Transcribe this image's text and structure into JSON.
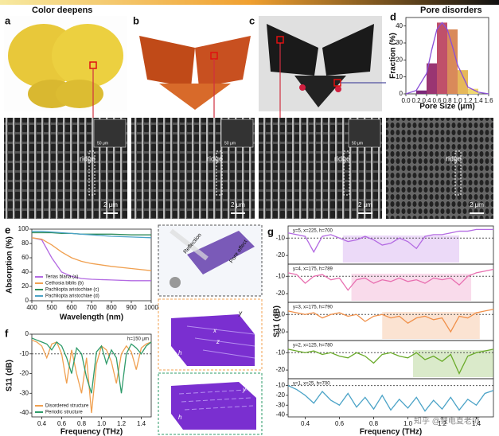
{
  "figure": {
    "banner_left": "Color deepens",
    "banner_right": "Pore disorders",
    "panels": [
      "a",
      "b",
      "c"
    ],
    "sem": [
      {
        "ridge": "ridge",
        "scale": "2 μm",
        "inset_scale": "50 μm"
      },
      {
        "ridge": "ridge",
        "scale": "2 μm",
        "inset_scale": "50 μm"
      },
      {
        "ridge": "ridge",
        "scale": "2 μm",
        "inset_scale": "50 μm"
      },
      {
        "ridge": "ridge",
        "scale": "2 μm"
      }
    ],
    "diagram": {
      "reflection": "Reflection",
      "pore": "Pore effect",
      "dims1": [
        "x",
        "y",
        "z",
        "h"
      ],
      "dims2": [
        "y",
        "h"
      ]
    },
    "watermark": "知乎 @锂电夏老师"
  },
  "chart_data": [
    {
      "type": "histogram",
      "label": "d",
      "bins": [
        0.2,
        0.4,
        0.6,
        0.8,
        1.0,
        1.2,
        1.4
      ],
      "values": [
        2,
        18,
        42,
        38,
        14,
        3
      ],
      "colors": [
        "#7b2a7a",
        "#9a3572",
        "#c0506a",
        "#d98a5a",
        "#e6b85a",
        "#f0d870"
      ],
      "fit": {
        "color": "#8a4fd8",
        "x": [
          0.0,
          0.2,
          0.4,
          0.5,
          0.6,
          0.7,
          0.8,
          0.9,
          1.0,
          1.2,
          1.4,
          1.6
        ],
        "values": [
          0,
          2,
          12,
          26,
          38,
          42,
          38,
          28,
          17,
          4,
          1,
          0
        ]
      },
      "xlim": [
        0,
        1.6
      ],
      "xticks": [
        {
          "value": 0,
          "label": "0.0"
        },
        0.2,
        0.4,
        0.6,
        0.8,
        {
          "value": 1,
          "label": "1.0"
        },
        1.2,
        1.4,
        1.6
      ],
      "ylim": [
        0,
        45
      ],
      "yticks": [
        0,
        10,
        20,
        30,
        40
      ],
      "xlabel": "Pore Size (μm)",
      "ylabel": "Fraction (%)"
    },
    {
      "type": "line",
      "label": "e",
      "x": [
        400,
        450,
        500,
        550,
        600,
        650,
        700,
        800,
        900,
        1000
      ],
      "series": [
        {
          "name": "Terias blana (a)",
          "color": "#b36ae2",
          "values": [
            88,
            85,
            60,
            40,
            34,
            31,
            30,
            29,
            28,
            28
          ]
        },
        {
          "name": "Cethosia biblis (b)",
          "color": "#f0a050",
          "values": [
            88,
            86,
            78,
            68,
            60,
            55,
            52,
            48,
            45,
            42
          ]
        },
        {
          "name": "Pachliopta aristochiae (c)",
          "color": "#2e8b57",
          "values": [
            95,
            95,
            95,
            94,
            94,
            93,
            93,
            93,
            92,
            92
          ]
        },
        {
          "name": "Pachliopta aristochiae (d)",
          "color": "#4ba3c7",
          "values": [
            97,
            97,
            96,
            95,
            94,
            93,
            92,
            90,
            89,
            88
          ]
        }
      ],
      "xlim": [
        400,
        1000
      ],
      "xticks": [
        400,
        500,
        600,
        700,
        800,
        900,
        1000
      ],
      "ylim": [
        0,
        100
      ],
      "yticks": [
        0,
        20,
        40,
        60,
        80,
        100
      ],
      "xlabel": "Wavelength (nm)",
      "ylabel": "Absorption (%)"
    },
    {
      "type": "line",
      "label": "f",
      "annotation": "h=150 μm",
      "ref": -10,
      "x": [
        0.3,
        0.35,
        0.4,
        0.45,
        0.5,
        0.55,
        0.6,
        0.65,
        0.7,
        0.75,
        0.8,
        0.85,
        0.9,
        0.95,
        1.0,
        1.05,
        1.1,
        1.15,
        1.2,
        1.25,
        1.3,
        1.35,
        1.4,
        1.45,
        1.5
      ],
      "series": [
        {
          "name": "Disordered structure",
          "color": "#f0a050",
          "values": [
            -3,
            -4,
            -6,
            -12,
            -5,
            -4,
            -10,
            -25,
            -8,
            -20,
            -30,
            -12,
            -40,
            -15,
            -6,
            -8,
            -14,
            -25,
            -10,
            -6,
            -9,
            -18,
            -7,
            -5,
            -4
          ]
        },
        {
          "name": "Periodic structure",
          "color": "#2e9b6a",
          "values": [
            -2,
            -3,
            -4,
            -5,
            -8,
            -4,
            -6,
            -12,
            -20,
            -7,
            -10,
            -22,
            -30,
            -9,
            -6,
            -15,
            -8,
            -12,
            -30,
            -10,
            -5,
            -7,
            -10,
            -6,
            -4
          ]
        }
      ],
      "xlim": [
        0.3,
        1.5
      ],
      "xticks": [
        0.4,
        0.6,
        0.8,
        {
          "value": 1,
          "label": "1.0"
        },
        1.2,
        1.4
      ],
      "ylim": [
        -42,
        0
      ],
      "yticks": [
        0,
        -10,
        -20,
        -30,
        -40
      ],
      "xlabel": "Frequency (THz)",
      "ylabel": "S11 (dB)"
    },
    {
      "type": "panels",
      "label": "g",
      "ref": -10,
      "x": [
        0.3,
        0.35,
        0.4,
        0.45,
        0.5,
        0.55,
        0.6,
        0.65,
        0.7,
        0.75,
        0.8,
        0.85,
        0.9,
        0.95,
        1.0,
        1.05,
        1.1,
        1.15,
        1.2,
        1.25,
        1.3,
        1.35,
        1.4,
        1.45,
        1.5
      ],
      "xlim": [
        0.3,
        1.5
      ],
      "xticks": [
        0.4,
        0.6,
        0.8,
        {
          "value": 1,
          "label": "1.0"
        },
        1.2,
        1.4
      ],
      "xlabel": "Frequency (THz)",
      "ylabel": "S11 (dB)",
      "panels": [
        {
          "name": "y=5, x=225, h=700",
          "color": "#b36ae2",
          "band": [
            0.62,
            1.3
          ],
          "ylim": [
            -25,
            -3
          ],
          "yticks": [
            -10,
            -20
          ],
          "values": [
            -7,
            -8,
            -9,
            -18,
            -9,
            -8,
            -10,
            -12,
            -11,
            -9,
            -11,
            -14,
            -13,
            -10,
            -12,
            -16,
            -9,
            -8,
            -8,
            -7,
            -6,
            -6,
            -5,
            -5,
            -5
          ]
        },
        {
          "name": "y=4, x=175, h=789",
          "color": "#e86fb0",
          "band": [
            0.67,
            1.37
          ],
          "ylim": [
            -25,
            -3
          ],
          "yticks": [
            -10,
            -20
          ],
          "values": [
            -8,
            -9,
            -14,
            -10,
            -9,
            -12,
            -11,
            -18,
            -12,
            -11,
            -14,
            -12,
            -13,
            -11,
            -13,
            -12,
            -14,
            -11,
            -12,
            -11,
            -15,
            -10,
            -8,
            -7,
            -6
          ]
        },
        {
          "name": "y=3, x=175, h=790",
          "color": "#f0904a",
          "band": [
            0.85,
            1.42
          ],
          "ylim": [
            -25,
            -3
          ],
          "yticks": [
            -10,
            -20
          ],
          "values": [
            -8,
            -9,
            -10,
            -9,
            -12,
            -10,
            -9,
            -11,
            -10,
            -14,
            -11,
            -10,
            -12,
            -11,
            -15,
            -12,
            -11,
            -13,
            -12,
            -20,
            -11,
            -12,
            -9,
            -8,
            -7
          ]
        },
        {
          "name": "y=2, x=125, h=780",
          "color": "#6aab2a",
          "band": [
            1.03,
            1.5
          ],
          "ylim": [
            -25,
            -3
          ],
          "yticks": [
            -10,
            -20
          ],
          "values": [
            -8,
            -9,
            -10,
            -9,
            -11,
            -10,
            -12,
            -13,
            -10,
            -12,
            -16,
            -11,
            -10,
            -12,
            -13,
            -10,
            -14,
            -12,
            -15,
            -11,
            -22,
            -12,
            -10,
            -9,
            -8
          ]
        },
        {
          "name": "y=1, x=25, h=700",
          "color": "#4ba3c7",
          "ylim": [
            -42,
            -3
          ],
          "yticks": [
            -10,
            -20,
            -30,
            -40
          ],
          "values": [
            -10,
            -14,
            -20,
            -28,
            -16,
            -25,
            -30,
            -18,
            -32,
            -22,
            -34,
            -20,
            -35,
            -24,
            -33,
            -22,
            -36,
            -25,
            -34,
            -22,
            -35,
            -24,
            -30,
            -18,
            -15
          ]
        }
      ]
    }
  ]
}
